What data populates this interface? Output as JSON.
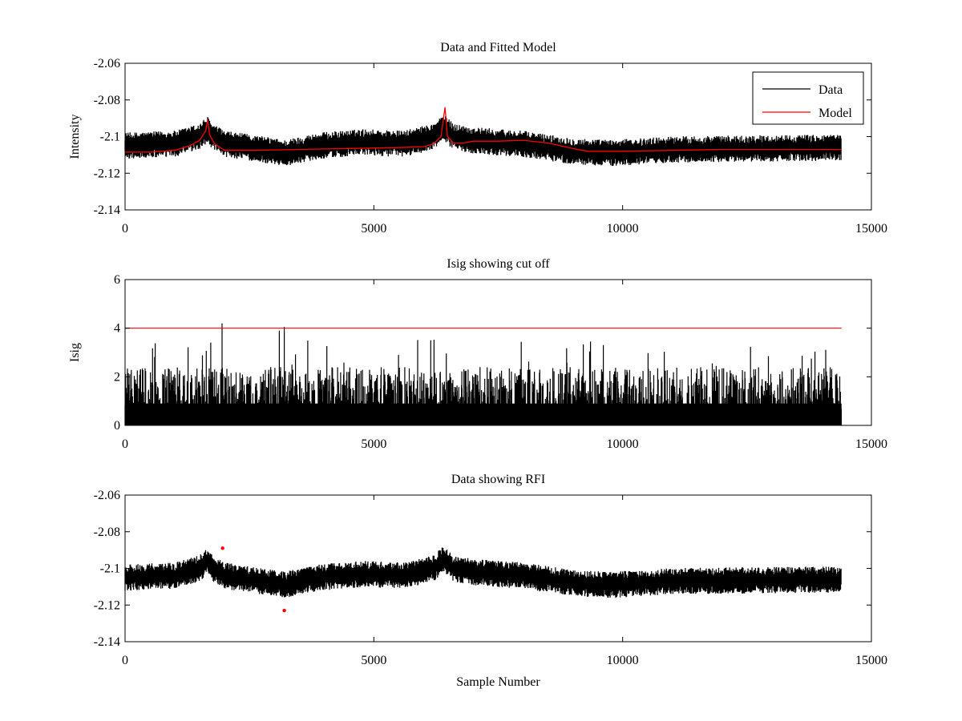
{
  "colors": {
    "data": "#000000",
    "model": "#ff0000",
    "cutoff": "#ff0000",
    "rfi": "#ff0000",
    "axes": "#000000",
    "background": "#ffffff"
  },
  "chart_data": [
    {
      "type": "line",
      "title": "Data and Fitted Model",
      "xlabel": "",
      "ylabel": "Intensity",
      "xlim": [
        0,
        15000
      ],
      "ylim": [
        -2.14,
        -2.06
      ],
      "xticks": [
        0,
        5000,
        10000,
        15000
      ],
      "xtick_labels": [
        "0",
        "5000",
        "10000",
        "15000"
      ],
      "yticks": [
        -2.14,
        -2.12,
        -2.1,
        -2.08,
        -2.06
      ],
      "ytick_labels": [
        "-2.14",
        "-2.12",
        "-2.1",
        "-2.08",
        "-2.06"
      ],
      "legend": {
        "position": "top-right",
        "entries": [
          "Data",
          "Model"
        ]
      },
      "series": [
        {
          "name": "Data",
          "kind": "noisy",
          "n_samples": 14400,
          "noise_amplitude": 0.006,
          "trend_x": [
            0,
            1000,
            1500,
            1650,
            1750,
            2000,
            3000,
            3200,
            3900,
            4800,
            5600,
            6200,
            6400,
            6600,
            7000,
            8000,
            9000,
            9800,
            11000,
            14400
          ],
          "trend_y": [
            -2.105,
            -2.104,
            -2.1,
            -2.096,
            -2.1,
            -2.104,
            -2.108,
            -2.109,
            -2.105,
            -2.103,
            -2.104,
            -2.1,
            -2.095,
            -2.1,
            -2.102,
            -2.104,
            -2.108,
            -2.109,
            -2.107,
            -2.106
          ]
        },
        {
          "name": "Model",
          "kind": "line",
          "x": [
            0,
            500,
            1000,
            1300,
            1500,
            1620,
            1660,
            1700,
            1800,
            2000,
            2300,
            2600,
            3500,
            4500,
            5500,
            6000,
            6200,
            6350,
            6430,
            6480,
            6600,
            6800,
            7000,
            7500,
            8000,
            8500,
            9000,
            9300,
            10000,
            12000,
            14400
          ],
          "y": [
            -2.1085,
            -2.1085,
            -2.1075,
            -2.105,
            -2.102,
            -2.097,
            -2.091,
            -2.099,
            -2.104,
            -2.1075,
            -2.1075,
            -2.1075,
            -2.107,
            -2.1065,
            -2.106,
            -2.1055,
            -2.104,
            -2.1,
            -2.084,
            -2.1,
            -2.1035,
            -2.1035,
            -2.1025,
            -2.1025,
            -2.102,
            -2.1035,
            -2.1065,
            -2.108,
            -2.108,
            -2.107,
            -2.107
          ]
        }
      ]
    },
    {
      "type": "line",
      "title": "Isig showing cut off",
      "xlabel": "",
      "ylabel": "Isig",
      "xlim": [
        0,
        15000
      ],
      "ylim": [
        0,
        6
      ],
      "xticks": [
        0,
        5000,
        10000,
        15000
      ],
      "xtick_labels": [
        "0",
        "5000",
        "10000",
        "15000"
      ],
      "yticks": [
        0,
        2,
        4,
        6
      ],
      "ytick_labels": [
        "0",
        "2",
        "4",
        "6"
      ],
      "series": [
        {
          "name": "Isig",
          "kind": "abs-noise",
          "n_samples": 14400,
          "typical_max": 2.4,
          "peaks": [
            [
              1950,
              4.2
            ],
            [
              3200,
              4.05
            ],
            [
              3100,
              3.9
            ]
          ]
        },
        {
          "name": "Cut off",
          "kind": "hline",
          "x": [
            0,
            14400
          ],
          "y": [
            4,
            4
          ]
        }
      ]
    },
    {
      "type": "line",
      "title": "Data showing RFI",
      "xlabel": "Sample Number",
      "ylabel": "",
      "xlim": [
        0,
        15000
      ],
      "ylim": [
        -2.14,
        -2.06
      ],
      "xticks": [
        0,
        5000,
        10000,
        15000
      ],
      "xtick_labels": [
        "0",
        "5000",
        "10000",
        "15000"
      ],
      "yticks": [
        -2.14,
        -2.12,
        -2.1,
        -2.08,
        -2.06
      ],
      "ytick_labels": [
        "-2.14",
        "-2.12",
        "-2.1",
        "-2.08",
        "-2.06"
      ],
      "series": [
        {
          "name": "Data",
          "kind": "noisy",
          "n_samples": 14400,
          "noise_amplitude": 0.006,
          "trend_x": [
            0,
            1000,
            1500,
            1650,
            1750,
            2000,
            3000,
            3200,
            3900,
            4800,
            5600,
            6200,
            6400,
            6600,
            7000,
            8000,
            9000,
            9800,
            11000,
            14400
          ],
          "trend_y": [
            -2.105,
            -2.104,
            -2.1,
            -2.096,
            -2.1,
            -2.104,
            -2.108,
            -2.109,
            -2.105,
            -2.103,
            -2.104,
            -2.1,
            -2.095,
            -2.1,
            -2.102,
            -2.104,
            -2.108,
            -2.109,
            -2.107,
            -2.106
          ]
        },
        {
          "name": "RFI",
          "kind": "points",
          "x": [
            1960,
            3200
          ],
          "y": [
            -2.089,
            -2.123
          ]
        }
      ]
    }
  ]
}
